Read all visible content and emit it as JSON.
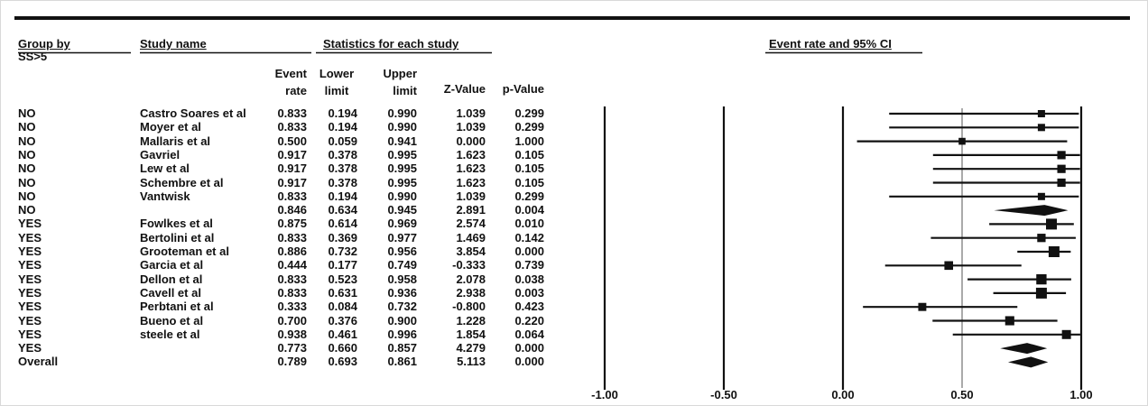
{
  "headers": {
    "group_by": "Group by",
    "group_var": "SS>5",
    "study_name": "Study name",
    "stats": "Statistics for each study",
    "plot": "Event rate and 95% CI",
    "cols": [
      "Event rate",
      "Lower limit",
      "Upper limit",
      "Z-Value",
      "p-Value"
    ]
  },
  "chart_data": {
    "type": "forest",
    "xlim": [
      -1.0,
      1.0
    ],
    "x_ticks": [
      "-1.00",
      "-0.50",
      "0.00",
      "0.50",
      "1.00"
    ],
    "rows": [
      {
        "group": "NO",
        "study": "Castro Soares et al",
        "rate": "0.833",
        "lower": "0.194",
        "upper": "0.990",
        "z": "1.039",
        "p": "0.299",
        "summary": false
      },
      {
        "group": "NO",
        "study": "Moyer et al",
        "rate": "0.833",
        "lower": "0.194",
        "upper": "0.990",
        "z": "1.039",
        "p": "0.299",
        "summary": false
      },
      {
        "group": "NO",
        "study": "Mallaris et al",
        "rate": "0.500",
        "lower": "0.059",
        "upper": "0.941",
        "z": "0.000",
        "p": "1.000",
        "summary": false
      },
      {
        "group": "NO",
        "study": "Gavriel",
        "rate": "0.917",
        "lower": "0.378",
        "upper": "0.995",
        "z": "1.623",
        "p": "0.105",
        "summary": false
      },
      {
        "group": "NO",
        "study": "Lew et al",
        "rate": "0.917",
        "lower": "0.378",
        "upper": "0.995",
        "z": "1.623",
        "p": "0.105",
        "summary": false
      },
      {
        "group": "NO",
        "study": "Schembre et al",
        "rate": "0.917",
        "lower": "0.378",
        "upper": "0.995",
        "z": "1.623",
        "p": "0.105",
        "summary": false
      },
      {
        "group": "NO",
        "study": "Vantwisk",
        "rate": "0.833",
        "lower": "0.194",
        "upper": "0.990",
        "z": "1.039",
        "p": "0.299",
        "summary": false
      },
      {
        "group": "NO",
        "study": "",
        "rate": "0.846",
        "lower": "0.634",
        "upper": "0.945",
        "z": "2.891",
        "p": "0.004",
        "summary": true
      },
      {
        "group": "YES",
        "study": "Fowlkes et al",
        "rate": "0.875",
        "lower": "0.614",
        "upper": "0.969",
        "z": "2.574",
        "p": "0.010",
        "summary": false
      },
      {
        "group": "YES",
        "study": "Bertolini et al",
        "rate": "0.833",
        "lower": "0.369",
        "upper": "0.977",
        "z": "1.469",
        "p": "0.142",
        "summary": false
      },
      {
        "group": "YES",
        "study": "Grooteman et al",
        "rate": "0.886",
        "lower": "0.732",
        "upper": "0.956",
        "z": "3.854",
        "p": "0.000",
        "summary": false
      },
      {
        "group": "YES",
        "study": "Garcia et al",
        "rate": "0.444",
        "lower": "0.177",
        "upper": "0.749",
        "z": "-0.333",
        "p": "0.739",
        "summary": false
      },
      {
        "group": "YES",
        "study": "Dellon et al",
        "rate": "0.833",
        "lower": "0.523",
        "upper": "0.958",
        "z": "2.078",
        "p": "0.038",
        "summary": false
      },
      {
        "group": "YES",
        "study": "Cavell et al",
        "rate": "0.833",
        "lower": "0.631",
        "upper": "0.936",
        "z": "2.938",
        "p": "0.003",
        "summary": false
      },
      {
        "group": "YES",
        "study": "Perbtani et al",
        "rate": "0.333",
        "lower": "0.084",
        "upper": "0.732",
        "z": "-0.800",
        "p": "0.423",
        "summary": false
      },
      {
        "group": "YES",
        "study": "Bueno et al",
        "rate": "0.700",
        "lower": "0.376",
        "upper": "0.900",
        "z": "1.228",
        "p": "0.220",
        "summary": false
      },
      {
        "group": "YES",
        "study": "steele et al",
        "rate": "0.938",
        "lower": "0.461",
        "upper": "0.996",
        "z": "1.854",
        "p": "0.064",
        "summary": false
      },
      {
        "group": "YES",
        "study": "",
        "rate": "0.773",
        "lower": "0.660",
        "upper": "0.857",
        "z": "4.279",
        "p": "0.000",
        "summary": true
      },
      {
        "group": "Overall",
        "study": "",
        "rate": "0.789",
        "lower": "0.693",
        "upper": "0.861",
        "z": "5.113",
        "p": "0.000",
        "summary": true
      }
    ]
  }
}
